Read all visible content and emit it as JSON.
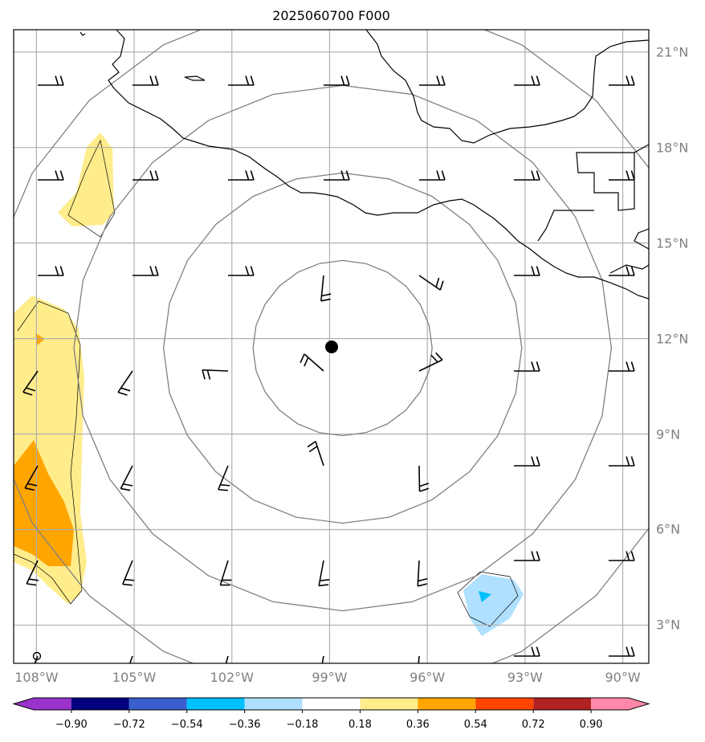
{
  "title": "2025060700 F000",
  "map": {
    "center_marker": {
      "lat": 11.7,
      "lon": -98.6
    },
    "extent": {
      "lon_min": -108.7,
      "lon_max": -89.2,
      "lat_min": 1.8,
      "lat_max": 21.7
    },
    "longitude_ticks": [
      {
        "lon": -108,
        "label": "108°W"
      },
      {
        "lon": -105,
        "label": "105°W"
      },
      {
        "lon": -102,
        "label": "102°W"
      },
      {
        "lon": -99,
        "label": "99°W"
      },
      {
        "lon": -96,
        "label": "96°W"
      },
      {
        "lon": -93,
        "label": "93°W"
      },
      {
        "lon": -90,
        "label": "90°W"
      }
    ],
    "latitude_ticks": [
      {
        "lat": 21,
        "label": "21°N"
      },
      {
        "lat": 18,
        "label": "18°N"
      },
      {
        "lat": 15,
        "label": "15°N"
      },
      {
        "lat": 12,
        "label": "12°N"
      },
      {
        "lat": 9,
        "label": "9°N"
      },
      {
        "lat": 6,
        "label": "6°N"
      },
      {
        "lat": 3,
        "label": "3°N"
      }
    ],
    "range_rings_deg": [
      2.75,
      5.5,
      8.25,
      11.0
    ],
    "colors": {
      "coastline": "#000000",
      "grid": "#b0b0b0",
      "ring": "#808080",
      "tick_label": "#7f7f7f"
    }
  },
  "colorbar": {
    "colors": [
      "#9933cc",
      "#000080",
      "#3a5fcd",
      "#00bfff",
      "#b0e0ff",
      "#ffffff",
      "#ffec8b",
      "#ffa500",
      "#ff4500",
      "#b22222",
      "#ff88aa"
    ],
    "labels": [
      "−0.90",
      "−0.72",
      "−0.54",
      "−0.36",
      "−0.18",
      "0.18",
      "0.36",
      "0.54",
      "0.72",
      "0.90"
    ]
  }
}
